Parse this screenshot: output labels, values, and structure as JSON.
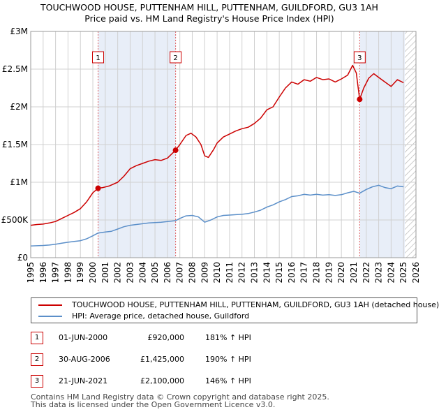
{
  "header": {
    "title_line1": "TOUCHWOOD HOUSE, PUTTENHAM HILL, PUTTENHAM, GUILDFORD, GU3 1AH",
    "title_line2": "Price paid vs. HM Land Registry's House Price Index (HPI)"
  },
  "chart_data": {
    "type": "line",
    "xlim": [
      1995,
      2026
    ],
    "ylim": [
      0,
      3000000
    ],
    "x_ticks": [
      1995,
      1996,
      1997,
      1998,
      1999,
      2000,
      2001,
      2002,
      2003,
      2004,
      2005,
      2006,
      2007,
      2008,
      2009,
      2010,
      2011,
      2012,
      2013,
      2014,
      2015,
      2016,
      2017,
      2018,
      2019,
      2020,
      2021,
      2022,
      2023,
      2024,
      2025,
      2026
    ],
    "y_ticks": [
      {
        "value": 0,
        "label": "£0"
      },
      {
        "value": 500000,
        "label": "£500K"
      },
      {
        "value": 1000000,
        "label": "£1M"
      },
      {
        "value": 1500000,
        "label": "£1.5M"
      },
      {
        "value": 2000000,
        "label": "£2M"
      },
      {
        "value": 2500000,
        "label": "£2.5M"
      },
      {
        "value": 3000000,
        "label": "£3M"
      }
    ],
    "shaded_ranges": [
      [
        2000.42,
        2006.66
      ],
      [
        2021.47,
        2025.1
      ]
    ],
    "hatched_from": 2025.1,
    "series": [
      {
        "name": "TOUCHWOOD HOUSE, PUTTENHAM HILL, PUTTENHAM, GUILDFORD, GU3 1AH (detached house)",
        "color": "#cc0000",
        "points": [
          [
            1995.0,
            430000
          ],
          [
            1995.5,
            440000
          ],
          [
            1996.0,
            445000
          ],
          [
            1996.5,
            460000
          ],
          [
            1997.0,
            480000
          ],
          [
            1997.5,
            520000
          ],
          [
            1998.0,
            560000
          ],
          [
            1998.5,
            600000
          ],
          [
            1999.0,
            650000
          ],
          [
            1999.5,
            740000
          ],
          [
            2000.0,
            860000
          ],
          [
            2000.42,
            920000
          ],
          [
            2000.8,
            930000
          ],
          [
            2001.3,
            950000
          ],
          [
            2002.0,
            1000000
          ],
          [
            2002.5,
            1080000
          ],
          [
            2003.0,
            1180000
          ],
          [
            2003.5,
            1220000
          ],
          [
            2004.0,
            1250000
          ],
          [
            2004.5,
            1280000
          ],
          [
            2005.0,
            1300000
          ],
          [
            2005.5,
            1290000
          ],
          [
            2006.0,
            1320000
          ],
          [
            2006.66,
            1425000
          ],
          [
            2007.0,
            1500000
          ],
          [
            2007.5,
            1620000
          ],
          [
            2007.9,
            1650000
          ],
          [
            2008.3,
            1600000
          ],
          [
            2008.7,
            1500000
          ],
          [
            2009.0,
            1350000
          ],
          [
            2009.3,
            1330000
          ],
          [
            2009.7,
            1430000
          ],
          [
            2010.0,
            1520000
          ],
          [
            2010.5,
            1600000
          ],
          [
            2011.0,
            1640000
          ],
          [
            2011.5,
            1680000
          ],
          [
            2012.0,
            1710000
          ],
          [
            2012.5,
            1730000
          ],
          [
            2013.0,
            1780000
          ],
          [
            2013.5,
            1850000
          ],
          [
            2014.0,
            1960000
          ],
          [
            2014.5,
            2000000
          ],
          [
            2015.0,
            2130000
          ],
          [
            2015.5,
            2250000
          ],
          [
            2016.0,
            2330000
          ],
          [
            2016.5,
            2300000
          ],
          [
            2017.0,
            2360000
          ],
          [
            2017.5,
            2340000
          ],
          [
            2018.0,
            2390000
          ],
          [
            2018.5,
            2360000
          ],
          [
            2019.0,
            2370000
          ],
          [
            2019.5,
            2330000
          ],
          [
            2020.0,
            2370000
          ],
          [
            2020.5,
            2420000
          ],
          [
            2020.9,
            2550000
          ],
          [
            2021.2,
            2450000
          ],
          [
            2021.47,
            2100000
          ],
          [
            2021.8,
            2250000
          ],
          [
            2022.2,
            2380000
          ],
          [
            2022.6,
            2440000
          ],
          [
            2023.0,
            2390000
          ],
          [
            2023.5,
            2330000
          ],
          [
            2024.0,
            2270000
          ],
          [
            2024.5,
            2360000
          ],
          [
            2025.0,
            2320000
          ]
        ]
      },
      {
        "name": "HPI: Average price, detached house, Guildford",
        "color": "#5b8fc9",
        "points": [
          [
            1995.0,
            155000
          ],
          [
            1995.5,
            158000
          ],
          [
            1996.0,
            162000
          ],
          [
            1996.5,
            168000
          ],
          [
            1997.0,
            178000
          ],
          [
            1997.5,
            193000
          ],
          [
            1998.0,
            205000
          ],
          [
            1998.5,
            215000
          ],
          [
            1999.0,
            225000
          ],
          [
            1999.5,
            250000
          ],
          [
            2000.0,
            290000
          ],
          [
            2000.42,
            327000
          ],
          [
            2001.0,
            340000
          ],
          [
            2001.5,
            350000
          ],
          [
            2002.0,
            380000
          ],
          [
            2002.5,
            410000
          ],
          [
            2003.0,
            430000
          ],
          [
            2003.5,
            440000
          ],
          [
            2004.0,
            450000
          ],
          [
            2004.5,
            460000
          ],
          [
            2005.0,
            465000
          ],
          [
            2005.5,
            470000
          ],
          [
            2006.0,
            480000
          ],
          [
            2006.66,
            491000
          ],
          [
            2007.0,
            520000
          ],
          [
            2007.5,
            555000
          ],
          [
            2008.0,
            560000
          ],
          [
            2008.5,
            540000
          ],
          [
            2009.0,
            470000
          ],
          [
            2009.5,
            500000
          ],
          [
            2010.0,
            540000
          ],
          [
            2010.5,
            560000
          ],
          [
            2011.0,
            565000
          ],
          [
            2011.5,
            570000
          ],
          [
            2012.0,
            575000
          ],
          [
            2012.5,
            585000
          ],
          [
            2013.0,
            605000
          ],
          [
            2013.5,
            630000
          ],
          [
            2014.0,
            670000
          ],
          [
            2014.5,
            700000
          ],
          [
            2015.0,
            740000
          ],
          [
            2015.5,
            770000
          ],
          [
            2016.0,
            810000
          ],
          [
            2016.5,
            820000
          ],
          [
            2017.0,
            840000
          ],
          [
            2017.5,
            830000
          ],
          [
            2018.0,
            840000
          ],
          [
            2018.5,
            830000
          ],
          [
            2019.0,
            835000
          ],
          [
            2019.5,
            825000
          ],
          [
            2020.0,
            835000
          ],
          [
            2020.5,
            860000
          ],
          [
            2021.0,
            880000
          ],
          [
            2021.47,
            855000
          ],
          [
            2022.0,
            905000
          ],
          [
            2022.5,
            940000
          ],
          [
            2023.0,
            960000
          ],
          [
            2023.5,
            930000
          ],
          [
            2024.0,
            915000
          ],
          [
            2024.5,
            950000
          ],
          [
            2025.0,
            940000
          ]
        ]
      }
    ],
    "sales": [
      {
        "marker": "1",
        "x": 2000.42,
        "value": 920000
      },
      {
        "marker": "2",
        "x": 2006.66,
        "value": 1425000
      },
      {
        "marker": "3",
        "x": 2021.47,
        "value": 2100000
      }
    ]
  },
  "legend": {
    "property": "TOUCHWOOD HOUSE, PUTTENHAM HILL, PUTTENHAM, GUILDFORD, GU3 1AH (detached house)",
    "hpi": "HPI: Average price, detached house, Guildford"
  },
  "transactions": [
    {
      "num": "1",
      "date": "01-JUN-2000",
      "price": "£920,000",
      "hpi": "181% ↑ HPI"
    },
    {
      "num": "2",
      "date": "30-AUG-2006",
      "price": "£1,425,000",
      "hpi": "190% ↑ HPI"
    },
    {
      "num": "3",
      "date": "21-JUN-2021",
      "price": "£2,100,000",
      "hpi": "146% ↑ HPI"
    }
  ],
  "footer": {
    "line1": "Contains HM Land Registry data © Crown copyright and database right 2025.",
    "line2": "This data is licensed under the Open Government Licence v3.0."
  },
  "colors": {
    "property_line": "#cc0000",
    "hpi_line": "#5b8fc9",
    "shade": "#e8eef8",
    "grid": "#d0d0d0"
  }
}
